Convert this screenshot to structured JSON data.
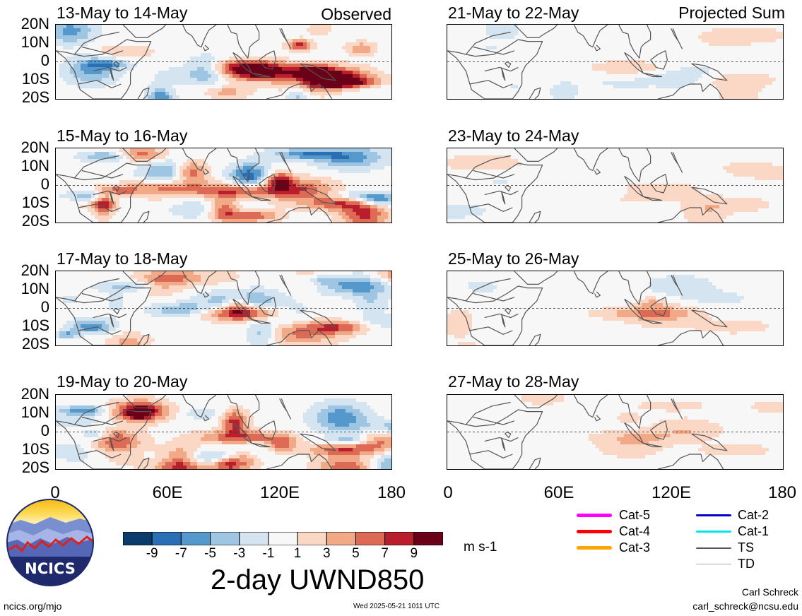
{
  "panels": [
    {
      "title": "13-May to 14-May",
      "corner": "Observed",
      "variant": 0,
      "seed": 11
    },
    {
      "title": "21-May to 22-May",
      "corner": "Projected Sum",
      "variant": 1,
      "seed": 21
    },
    {
      "title": "15-May to 16-May",
      "corner": "",
      "variant": 0,
      "seed": 13
    },
    {
      "title": "23-May to 24-May",
      "corner": "",
      "variant": 1,
      "seed": 23
    },
    {
      "title": "17-May to 18-May",
      "corner": "",
      "variant": 0,
      "seed": 17
    },
    {
      "title": "25-May to 26-May",
      "corner": "",
      "variant": 1,
      "seed": 25
    },
    {
      "title": "19-May to 20-May",
      "corner": "",
      "variant": 0,
      "seed": 19
    },
    {
      "title": "27-May to 28-May",
      "corner": "",
      "variant": 1,
      "seed": 27
    }
  ],
  "lat_labels": [
    "20N",
    "10N",
    "0",
    "10S",
    "20S"
  ],
  "lon_labels": [
    "0",
    "60E",
    "120E",
    "180"
  ],
  "colorbar": {
    "colors": [
      "#0b3b6b",
      "#2a6fb3",
      "#5599cc",
      "#9ec6e2",
      "#d4e5f1",
      "#f7f7f7",
      "#fbd8c6",
      "#f1a988",
      "#dc6a55",
      "#b81e2c",
      "#6b0019"
    ],
    "labels": [
      "-9",
      "-7",
      "-5",
      "-3",
      "-1",
      "1",
      "3",
      "5",
      "7",
      "9"
    ],
    "units": "m s-1"
  },
  "main_title": "2-day UWND850",
  "logo": {
    "text": "NCICS"
  },
  "legend": [
    {
      "label": "Cat-5",
      "color": "#ff00ff",
      "width": 5
    },
    {
      "label": "Cat-4",
      "color": "#ff0000",
      "width": 5
    },
    {
      "label": "Cat-3",
      "color": "#ffa500",
      "width": 5
    },
    {
      "label": "Cat-2",
      "color": "#0000cc",
      "width": 3
    },
    {
      "label": "Cat-1",
      "color": "#00e5ee",
      "width": 3
    },
    {
      "label": "TS",
      "color": "#555555",
      "width": 2
    },
    {
      "label": "TD",
      "color": "#aaaaaa",
      "width": 1
    }
  ],
  "footer": {
    "url": "ncics.org/mjo",
    "timestamp": "Wed 2025-05-21 1011 UTC",
    "author": "Carl Schreck",
    "email": "carl_schreck@ncsu.edu"
  }
}
